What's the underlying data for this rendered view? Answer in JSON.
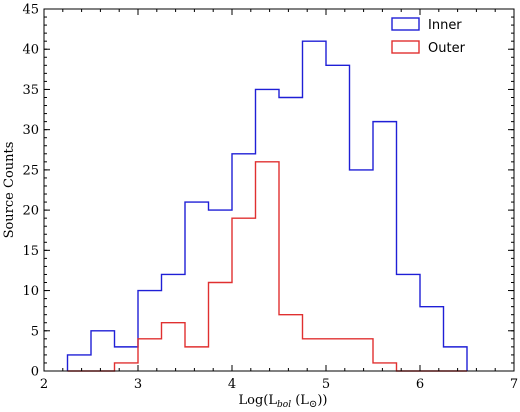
{
  "chart_data": {
    "type": "histogram",
    "title": "",
    "xlabel": "Log(L",
    "xlabel_sub": "bol",
    "xlabel_rest": " (L",
    "xlabel_symbol": "⊙",
    "xlabel_end": "))",
    "ylabel": "Source Counts",
    "xlim": [
      2,
      7
    ],
    "ylim": [
      0,
      45
    ],
    "xticks": [
      2,
      3,
      4,
      5,
      6,
      7
    ],
    "yticks": [
      0,
      5,
      10,
      15,
      20,
      25,
      30,
      35,
      40,
      45
    ],
    "bin_edges": [
      2.25,
      2.5,
      2.75,
      3.0,
      3.25,
      3.5,
      3.75,
      4.0,
      4.25,
      4.5,
      4.75,
      5.0,
      5.25,
      5.5,
      5.75,
      6.0,
      6.25,
      6.5
    ],
    "legend_position": "top-right",
    "series": [
      {
        "name": "Inner",
        "color": "#1f1fd6",
        "counts": [
          2,
          5,
          3,
          10,
          12,
          21,
          20,
          27,
          35,
          34,
          41,
          38,
          25,
          31,
          12,
          8,
          3
        ]
      },
      {
        "name": "Outer",
        "color": "#e03030",
        "counts": [
          0,
          0,
          1,
          4,
          6,
          3,
          11,
          19,
          26,
          7,
          4,
          4,
          4,
          1,
          0,
          0,
          0
        ]
      }
    ]
  }
}
